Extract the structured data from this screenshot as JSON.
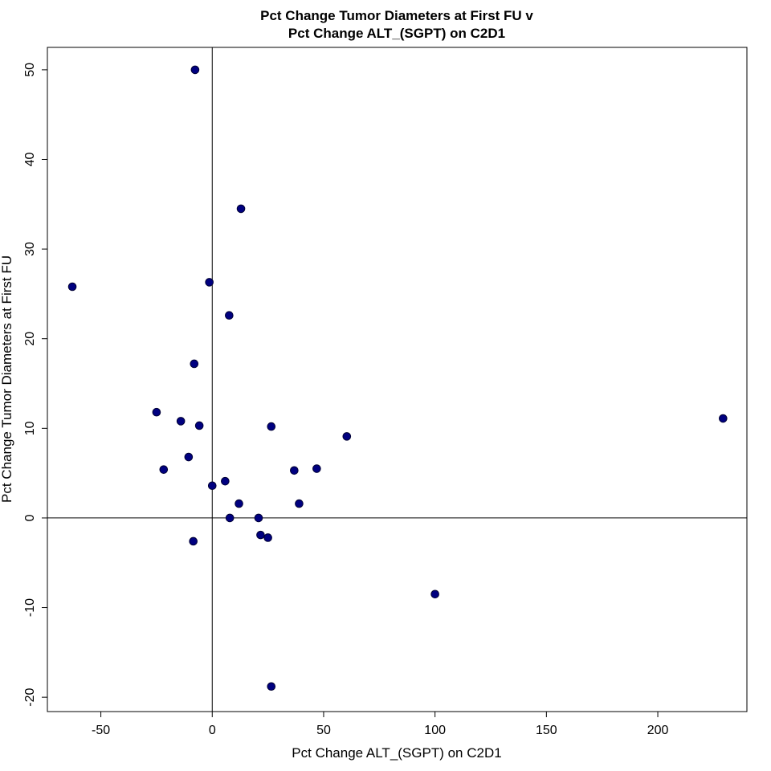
{
  "chart_data": {
    "type": "scatter",
    "title": "Pct Change Tumor Diameters at First FU v\nPct Change ALT_(SGPT) on C2D1",
    "title_lines": [
      "Pct Change Tumor Diameters at First FU v",
      "Pct Change ALT_(SGPT) on C2D1"
    ],
    "xlabel": "Pct Change ALT_(SGPT) on C2D1",
    "ylabel": "Pct Change Tumor Diameters at First FU",
    "xlim": [
      -74,
      240
    ],
    "ylim": [
      -21.6,
      52.5
    ],
    "x_ticks": [
      -50,
      0,
      50,
      100,
      150,
      200
    ],
    "x_tick_labels": [
      "-50",
      "0",
      "50",
      "100",
      "150",
      "200"
    ],
    "y_ticks": [
      -20,
      -10,
      0,
      10,
      20,
      30,
      40,
      50
    ],
    "y_tick_labels": [
      "-20",
      "-10",
      "0",
      "10",
      "20",
      "30",
      "40",
      "50"
    ],
    "reference_lines": {
      "x": 0,
      "y": 0
    },
    "grid": false,
    "legend": "none",
    "point_color": "#000080",
    "x": [
      -7.7,
      -62.8,
      12.9,
      -1.3,
      7.6,
      -8.1,
      -25.0,
      -14.1,
      -5.8,
      26.5,
      60.4,
      -21.8,
      -10.6,
      36.8,
      46.9,
      5.8,
      0.0,
      12.0,
      39.0,
      7.9,
      20.8,
      21.7,
      25.0,
      -8.5,
      100.0,
      229.3,
      26.5
    ],
    "y": [
      50.0,
      25.8,
      34.5,
      26.3,
      22.6,
      17.2,
      11.8,
      10.8,
      10.3,
      10.2,
      9.1,
      5.4,
      6.8,
      5.3,
      5.5,
      4.1,
      3.6,
      1.6,
      1.6,
      0.0,
      0.0,
      -1.9,
      -2.2,
      -2.6,
      -8.5,
      11.1,
      -18.8
    ]
  }
}
